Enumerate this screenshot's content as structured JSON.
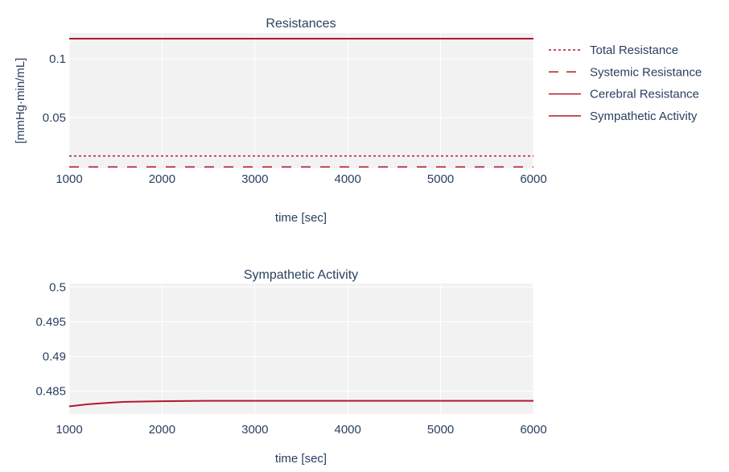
{
  "colors": {
    "series": "#b2182b",
    "plot_bg": "#f2f2f2",
    "grid": "#ffffff",
    "text": "#2a3f5f"
  },
  "chart_data": [
    {
      "type": "line",
      "title": "Resistances",
      "xlabel": "time [sec]",
      "ylabel": "[mmHg·min/mL]",
      "xlim": [
        1000,
        6000
      ],
      "ylim": [
        0.0066,
        0.122
      ],
      "xticks": [
        1000,
        2000,
        3000,
        4000,
        5000,
        6000
      ],
      "xtick_labels": [
        "1000",
        "2000",
        "3000",
        "4000",
        "5000",
        "6000"
      ],
      "yticks": [
        0.05,
        0.1
      ],
      "ytick_labels": [
        "0.05",
        "0.1"
      ],
      "grid": true,
      "legend_position": "right",
      "series": [
        {
          "name": "Total Resistance",
          "dash": "dot",
          "x": [
            1000,
            6000
          ],
          "y": [
            0.0172,
            0.0172
          ]
        },
        {
          "name": "Systemic Resistance",
          "dash": "dash",
          "x": [
            1000,
            6000
          ],
          "y": [
            0.0078,
            0.0078
          ]
        },
        {
          "name": "Cerebral Resistance",
          "dash": "solid",
          "x": [
            1000,
            6000
          ],
          "y": [
            0.1172,
            0.1172
          ]
        }
      ],
      "legend_entries": [
        {
          "name": "Total Resistance",
          "dash": "dot"
        },
        {
          "name": "Systemic Resistance",
          "dash": "dash"
        },
        {
          "name": "Cerebral Resistance",
          "dash": "solid"
        },
        {
          "name": "Sympathetic Activity",
          "dash": "solid"
        }
      ]
    },
    {
      "type": "line",
      "title": "Sympathetic Activity",
      "xlabel": "time [sec]",
      "ylabel": "",
      "xlim": [
        1000,
        6000
      ],
      "ylim": [
        0.4817,
        0.5005
      ],
      "xticks": [
        1000,
        2000,
        3000,
        4000,
        5000,
        6000
      ],
      "xtick_labels": [
        "1000",
        "2000",
        "3000",
        "4000",
        "5000",
        "6000"
      ],
      "yticks": [
        0.485,
        0.49,
        0.495,
        0.5
      ],
      "ytick_labels": [
        "0.485",
        "0.49",
        "0.495",
        "0.5"
      ],
      "grid": true,
      "series": [
        {
          "name": "Sympathetic Activity",
          "dash": "solid",
          "x": [
            1000,
            1200,
            1400,
            1600,
            1800,
            2000,
            2500,
            3000,
            4000,
            5000,
            6000
          ],
          "y": [
            0.4828,
            0.4831,
            0.4833,
            0.48345,
            0.4835,
            0.48355,
            0.4836,
            0.4836,
            0.4836,
            0.4836,
            0.4836
          ]
        }
      ]
    }
  ]
}
